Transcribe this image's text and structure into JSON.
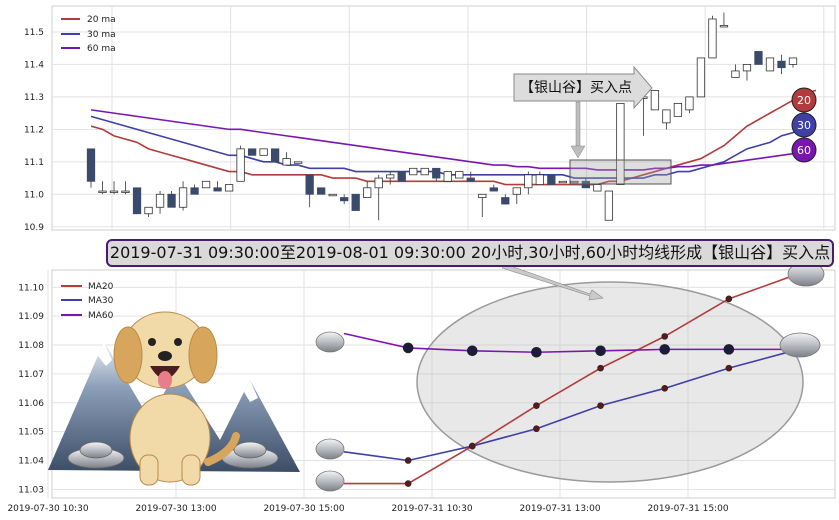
{
  "colors": {
    "ma20": "#b23b3b",
    "ma30": "#3f3fa8",
    "ma60": "#7a16b0",
    "candle_down": "#3b4a6b",
    "grid": "#e2e2e2",
    "annotation_border": "#4b1a6e",
    "annotation_fill": "#d9d9d9"
  },
  "icons": {
    "dog": "cartoon-dog-icon",
    "mountains": "mountains-icon",
    "ingot": "silver-ingot-icon",
    "pointer_arrow": "arrow-right-icon"
  },
  "annotation": {
    "text": "2019-07-31 09:30:00至2019-08-01 09:30:00 20小时,30小时,60小时均线形成【银山谷】买入点"
  },
  "chart_data": [
    {
      "type": "candlestick",
      "title": "",
      "xlabel": "",
      "ylabel": "",
      "ylim": [
        10.89,
        11.58
      ],
      "yticks": [
        10.9,
        11.0,
        11.1,
        11.2,
        11.3,
        11.4,
        11.5
      ],
      "ytick_labels": [
        "10.9",
        "11.0",
        "11.1",
        "11.2",
        "11.3",
        "11.4",
        "11.5"
      ],
      "grid": true,
      "legend": {
        "placement": "top-left",
        "entries": [
          {
            "label": "20 ma",
            "color": "#b23b3b"
          },
          {
            "label": "30 ma",
            "color": "#3f3fa8"
          },
          {
            "label": "60 ma",
            "color": "#7a16b0"
          }
        ]
      },
      "candles": [
        {
          "o": 11.14,
          "h": 11.14,
          "l": 11.02,
          "c": 11.04
        },
        {
          "o": 11.01,
          "h": 11.04,
          "l": 11.0,
          "c": 11.01
        },
        {
          "o": 11.01,
          "h": 11.04,
          "l": 11.0,
          "c": 11.01
        },
        {
          "o": 11.01,
          "h": 11.04,
          "l": 11.0,
          "c": 11.01
        },
        {
          "o": 11.02,
          "h": 11.02,
          "l": 10.94,
          "c": 10.94
        },
        {
          "o": 10.94,
          "h": 10.96,
          "l": 10.93,
          "c": 10.96
        },
        {
          "o": 10.96,
          "h": 11.01,
          "l": 10.94,
          "c": 11.0
        },
        {
          "o": 11.0,
          "h": 11.01,
          "l": 10.96,
          "c": 10.96
        },
        {
          "o": 10.96,
          "h": 11.04,
          "l": 10.95,
          "c": 11.02
        },
        {
          "o": 11.02,
          "h": 11.03,
          "l": 11.0,
          "c": 11.0
        },
        {
          "o": 11.02,
          "h": 11.04,
          "l": 11.02,
          "c": 11.04
        },
        {
          "o": 11.02,
          "h": 11.04,
          "l": 11.01,
          "c": 11.01
        },
        {
          "o": 11.01,
          "h": 11.03,
          "l": 11.01,
          "c": 11.03
        },
        {
          "o": 11.04,
          "h": 11.15,
          "l": 11.04,
          "c": 11.14
        },
        {
          "o": 11.14,
          "h": 11.14,
          "l": 11.12,
          "c": 11.12
        },
        {
          "o": 11.12,
          "h": 11.14,
          "l": 11.12,
          "c": 11.14
        },
        {
          "o": 11.14,
          "h": 11.14,
          "l": 11.1,
          "c": 11.1
        },
        {
          "o": 11.09,
          "h": 11.13,
          "l": 11.09,
          "c": 11.11
        },
        {
          "o": 11.1,
          "h": 11.1,
          "l": 11.1,
          "c": 11.1
        },
        {
          "o": 11.06,
          "h": 11.06,
          "l": 10.96,
          "c": 11.0
        },
        {
          "o": 11.02,
          "h": 11.02,
          "l": 11.0,
          "c": 11.0
        },
        {
          "o": 11.0,
          "h": 11.0,
          "l": 11.0,
          "c": 11.0
        },
        {
          "o": 10.99,
          "h": 11.0,
          "l": 10.97,
          "c": 10.98
        },
        {
          "o": 11.0,
          "h": 11.0,
          "l": 10.95,
          "c": 10.95
        },
        {
          "o": 10.99,
          "h": 11.04,
          "l": 10.99,
          "c": 11.02
        },
        {
          "o": 11.02,
          "h": 11.06,
          "l": 10.92,
          "c": 11.05
        },
        {
          "o": 11.05,
          "h": 11.07,
          "l": 11.03,
          "c": 11.06
        },
        {
          "o": 11.07,
          "h": 11.07,
          "l": 11.04,
          "c": 11.04
        },
        {
          "o": 11.06,
          "h": 11.08,
          "l": 11.06,
          "c": 11.08
        },
        {
          "o": 11.06,
          "h": 11.08,
          "l": 11.06,
          "c": 11.08
        },
        {
          "o": 11.08,
          "h": 11.08,
          "l": 11.04,
          "c": 11.05
        },
        {
          "o": 11.04,
          "h": 11.07,
          "l": 11.04,
          "c": 11.07
        },
        {
          "o": 11.05,
          "h": 11.07,
          "l": 11.05,
          "c": 11.07
        },
        {
          "o": 11.05,
          "h": 11.07,
          "l": 11.04,
          "c": 11.04
        },
        {
          "o": 10.99,
          "h": 11.0,
          "l": 10.93,
          "c": 11.0
        },
        {
          "o": 11.02,
          "h": 11.03,
          "l": 11.01,
          "c": 11.01
        },
        {
          "o": 10.99,
          "h": 11.0,
          "l": 10.97,
          "c": 10.97
        },
        {
          "o": 11.0,
          "h": 11.02,
          "l": 10.97,
          "c": 11.02
        },
        {
          "o": 11.02,
          "h": 11.07,
          "l": 11.0,
          "c": 11.06
        },
        {
          "o": 11.03,
          "h": 11.07,
          "l": 11.03,
          "c": 11.06
        },
        {
          "o": 11.06,
          "h": 11.06,
          "l": 11.03,
          "c": 11.03
        },
        {
          "o": 11.04,
          "h": 11.04,
          "l": 11.04,
          "c": 11.04
        },
        {
          "o": 11.04,
          "h": 11.04,
          "l": 11.04,
          "c": 11.04
        },
        {
          "o": 11.04,
          "h": 11.05,
          "l": 11.02,
          "c": 11.02
        },
        {
          "o": 11.01,
          "h": 11.03,
          "l": 11.01,
          "c": 11.03
        },
        {
          "o": 10.92,
          "h": 11.01,
          "l": 10.92,
          "c": 11.01
        },
        {
          "o": 11.03,
          "h": 11.28,
          "l": 11.03,
          "c": 11.28
        },
        {
          "o": 11.3,
          "h": 11.32,
          "l": 11.3,
          "c": 11.32
        },
        {
          "o": 11.3,
          "h": 11.33,
          "l": 11.18,
          "c": 11.3
        },
        {
          "o": 11.26,
          "h": 11.32,
          "l": 11.26,
          "c": 11.32
        },
        {
          "o": 11.22,
          "h": 11.26,
          "l": 11.2,
          "c": 11.26
        },
        {
          "o": 11.24,
          "h": 11.28,
          "l": 11.24,
          "c": 11.28
        },
        {
          "o": 11.26,
          "h": 11.3,
          "l": 11.25,
          "c": 11.3
        },
        {
          "o": 11.3,
          "h": 11.42,
          "l": 11.3,
          "c": 11.42
        },
        {
          "o": 11.42,
          "h": 11.55,
          "l": 11.42,
          "c": 11.54
        },
        {
          "o": 11.52,
          "h": 11.56,
          "l": 11.52,
          "c": 11.52
        },
        {
          "o": 11.36,
          "h": 11.4,
          "l": 11.36,
          "c": 11.38
        },
        {
          "o": 11.38,
          "h": 11.4,
          "l": 11.35,
          "c": 11.4
        },
        {
          "o": 11.44,
          "h": 11.44,
          "l": 11.4,
          "c": 11.4
        },
        {
          "o": 11.38,
          "h": 11.42,
          "l": 11.38,
          "c": 11.42
        },
        {
          "o": 11.41,
          "h": 11.43,
          "l": 11.37,
          "c": 11.39
        },
        {
          "o": 11.4,
          "h": 11.42,
          "l": 11.39,
          "c": 11.42
        }
      ],
      "ma_series": [
        {
          "name": "20 ma",
          "end_label": "20",
          "values": [
            11.21,
            11.2,
            11.18,
            11.17,
            11.16,
            11.14,
            11.13,
            11.12,
            11.11,
            11.1,
            11.09,
            11.08,
            11.07,
            11.07,
            11.06,
            11.06,
            11.06,
            11.06,
            11.06,
            11.06,
            11.06,
            11.05,
            11.05,
            11.05,
            11.04,
            11.04,
            11.04,
            11.04,
            11.04,
            11.04,
            11.04,
            11.04,
            11.04,
            11.04,
            11.04,
            11.04,
            11.03,
            11.03,
            11.03,
            11.03,
            11.03,
            11.03,
            11.03,
            11.03,
            11.03,
            11.04,
            11.04,
            11.05,
            11.06,
            11.07,
            11.08,
            11.09,
            11.1,
            11.11,
            11.13,
            11.15,
            11.18,
            11.21,
            11.23,
            11.25,
            11.27,
            11.29,
            11.31,
            11.32
          ]
        },
        {
          "name": "30 ma",
          "end_label": "30",
          "values": [
            11.24,
            11.23,
            11.22,
            11.21,
            11.2,
            11.19,
            11.18,
            11.17,
            11.16,
            11.15,
            11.14,
            11.13,
            11.12,
            11.12,
            11.11,
            11.1,
            11.1,
            11.09,
            11.09,
            11.08,
            11.08,
            11.08,
            11.08,
            11.07,
            11.07,
            11.07,
            11.07,
            11.07,
            11.07,
            11.07,
            11.07,
            11.06,
            11.06,
            11.06,
            11.06,
            11.06,
            11.06,
            11.06,
            11.06,
            11.06,
            11.06,
            11.06,
            11.05,
            11.05,
            11.05,
            11.05,
            11.05,
            11.05,
            11.05,
            11.06,
            11.06,
            11.07,
            11.07,
            11.08,
            11.09,
            11.1,
            11.12,
            11.14,
            11.15,
            11.16,
            11.18,
            11.19,
            11.21,
            11.22
          ]
        },
        {
          "name": "60 ma",
          "end_label": "60",
          "values": [
            11.26,
            11.255,
            11.25,
            11.245,
            11.24,
            11.235,
            11.23,
            11.225,
            11.22,
            11.215,
            11.21,
            11.205,
            11.2,
            11.2,
            11.195,
            11.19,
            11.185,
            11.18,
            11.175,
            11.17,
            11.165,
            11.16,
            11.155,
            11.15,
            11.145,
            11.14,
            11.135,
            11.13,
            11.125,
            11.12,
            11.115,
            11.11,
            11.105,
            11.1,
            11.095,
            11.09,
            11.09,
            11.085,
            11.085,
            11.08,
            11.08,
            11.08,
            11.08,
            11.08,
            11.075,
            11.075,
            11.075,
            11.075,
            11.075,
            11.08,
            11.08,
            11.085,
            11.085,
            11.09,
            11.09,
            11.095,
            11.1,
            11.105,
            11.11,
            11.115,
            11.12,
            11.125,
            11.13,
            11.13
          ]
        }
      ],
      "callout": {
        "text": "【银山谷】买入点"
      }
    },
    {
      "type": "line",
      "title": "",
      "xlabel": "",
      "ylabel": "",
      "ylim": [
        11.027,
        11.106
      ],
      "yticks": [
        11.03,
        11.04,
        11.05,
        11.06,
        11.07,
        11.08,
        11.09,
        11.1
      ],
      "ytick_labels": [
        "11.03",
        "11.04",
        "11.05",
        "11.06",
        "11.07",
        "11.08",
        "11.09",
        "11.10"
      ],
      "x": [
        "2019-07-30 14:00",
        "2019-07-30 15:00",
        "2019-07-31 10:00",
        "2019-07-31 11:00",
        "2019-07-31 13:00",
        "2019-07-31 14:00",
        "2019-07-31 15:00",
        "2019-08-01 09:30"
      ],
      "xticks": [
        "2019-07-30 10:30",
        "2019-07-30 13:00",
        "2019-07-30 15:00",
        "2019-07-31 10:30",
        "2019-07-31 13:00",
        "2019-07-31 15:00"
      ],
      "grid": true,
      "legend": {
        "placement": "top-left",
        "entries": [
          {
            "label": "MA20",
            "color": "#b23b3b"
          },
          {
            "label": "MA30",
            "color": "#3f3fa8"
          },
          {
            "label": "MA60",
            "color": "#7a16b0"
          }
        ]
      },
      "series": [
        {
          "name": "MA20",
          "values": [
            11.032,
            11.032,
            11.045,
            11.059,
            11.072,
            11.083,
            11.096,
            11.104
          ]
        },
        {
          "name": "MA30",
          "values": [
            11.043,
            11.04,
            11.045,
            11.051,
            11.059,
            11.065,
            11.072,
            11.078
          ]
        },
        {
          "name": "MA60",
          "values": [
            11.084,
            11.079,
            11.078,
            11.0775,
            11.078,
            11.0785,
            11.0785,
            11.0785
          ]
        }
      ]
    }
  ]
}
